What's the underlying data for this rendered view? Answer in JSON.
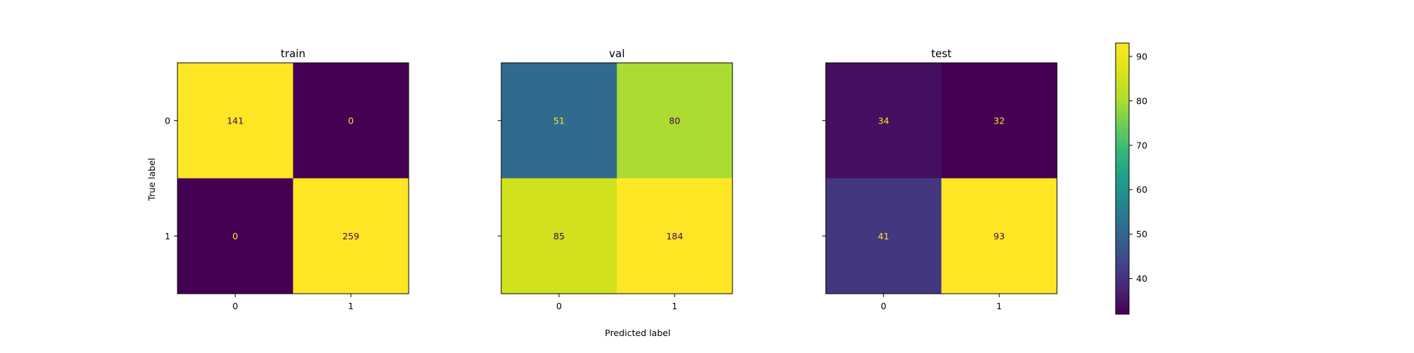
{
  "chart_data": {
    "type": "heatmap",
    "xlabel": "Predicted label",
    "ylabel": "True label",
    "x_ticks": [
      "0",
      "1"
    ],
    "y_ticks": [
      "0",
      "1"
    ],
    "colormap": "viridis",
    "panels": [
      {
        "title": "train",
        "matrix": [
          [
            141,
            0
          ],
          [
            0,
            259
          ]
        ]
      },
      {
        "title": "val",
        "matrix": [
          [
            51,
            80
          ],
          [
            85,
            184
          ]
        ]
      },
      {
        "title": "test",
        "matrix": [
          [
            34,
            32
          ],
          [
            41,
            93
          ]
        ]
      }
    ],
    "colorbar": {
      "range": [
        32,
        93
      ],
      "ticks": [
        "40",
        "50",
        "60",
        "70",
        "80",
        "90"
      ]
    }
  }
}
